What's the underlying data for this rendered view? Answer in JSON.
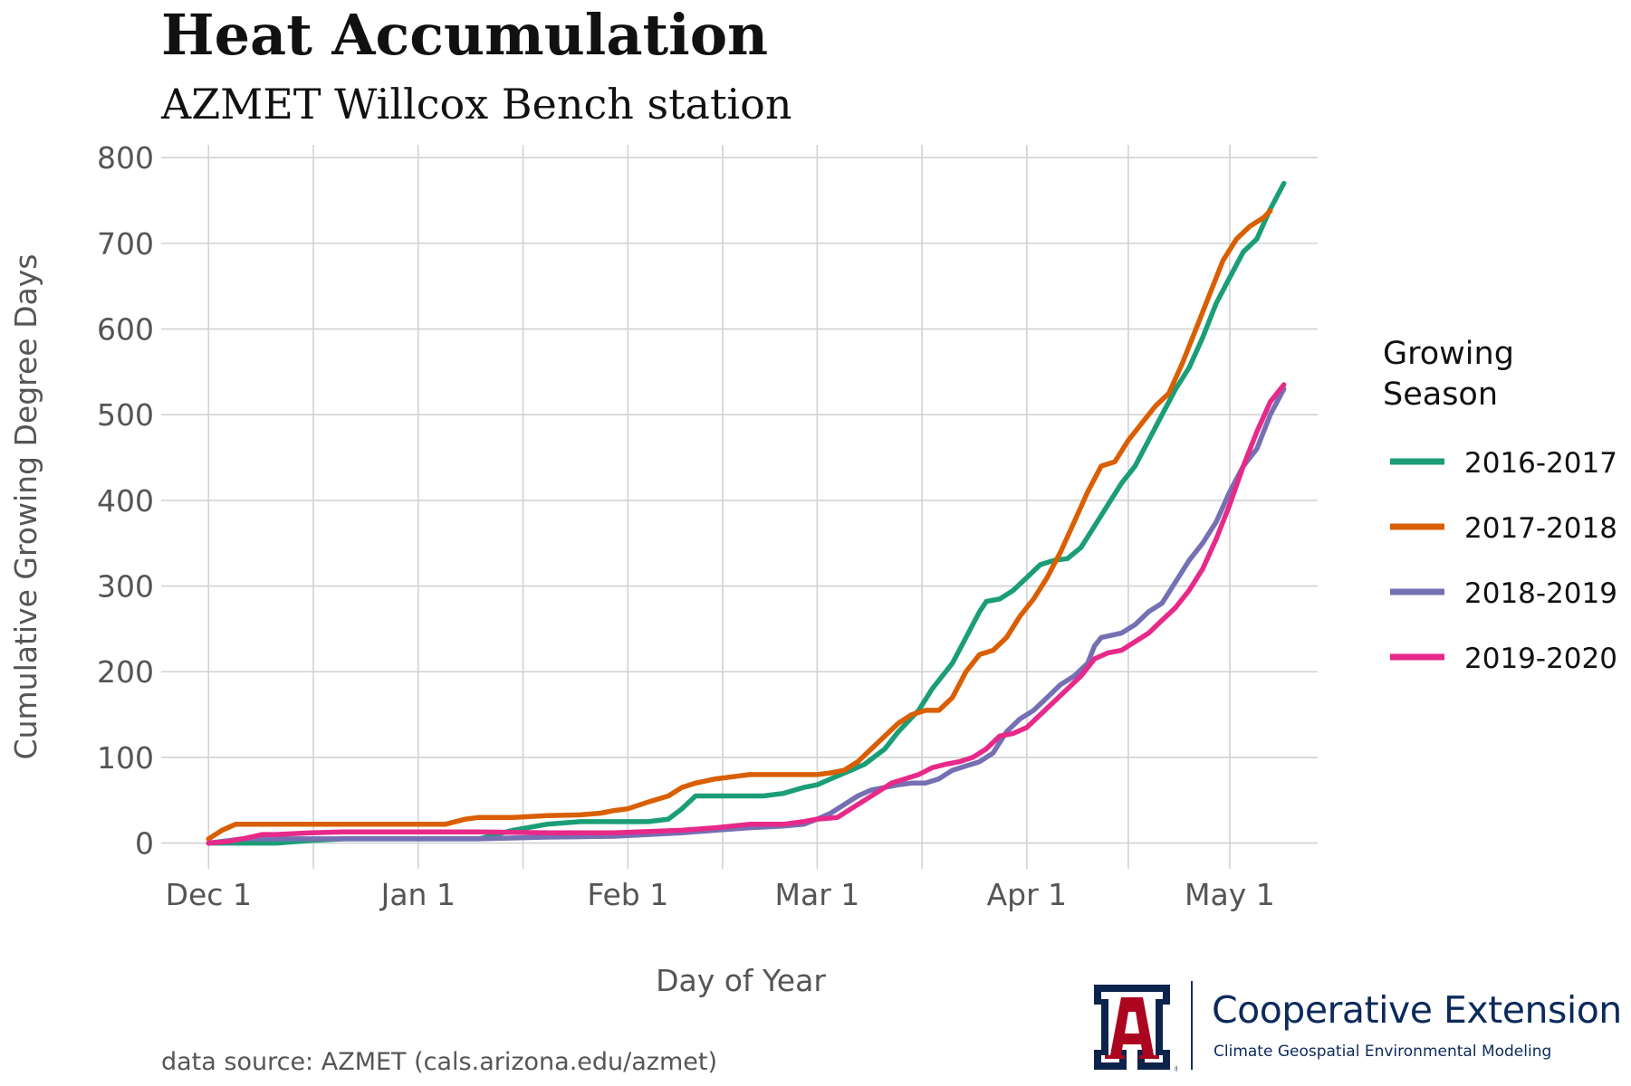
{
  "header": {
    "title": "Heat Accumulation",
    "subtitle": "AZMET Willcox Bench station"
  },
  "caption": "data source: AZMET (cals.arizona.edu/azmet)",
  "logo": {
    "name": "Cooperative Extension",
    "tagline": "Climate Geospatial Environmental Modeling",
    "mark_letter": "A",
    "mark_colors": {
      "red": "#ab0520",
      "navy": "#0c234b"
    }
  },
  "chart_data": {
    "type": "line",
    "title": "",
    "xlabel": "Day of Year",
    "ylabel": "Cumulative Growing Degree Days",
    "xlim": [
      -7,
      164
    ],
    "ylim": [
      -30,
      815
    ],
    "grid": true,
    "x_ticks": [
      {
        "day": 0,
        "label": "Dec 1"
      },
      {
        "day": 31,
        "label": "Jan 1"
      },
      {
        "day": 62,
        "label": "Feb 1"
      },
      {
        "day": 90,
        "label": "Mar 1"
      },
      {
        "day": 121,
        "label": "Apr 1"
      },
      {
        "day": 151,
        "label": "May 1"
      }
    ],
    "x_minor_ticks": [
      15.5,
      46.5,
      76,
      105.5,
      136
    ],
    "y_ticks": [
      0,
      100,
      200,
      300,
      400,
      500,
      600,
      700,
      800
    ],
    "legend": {
      "title": "Growing Season",
      "position": "right"
    },
    "series": [
      {
        "name": "2016-2017",
        "color": "#1b9e77",
        "points": [
          [
            0,
            0
          ],
          [
            5,
            0
          ],
          [
            10,
            0
          ],
          [
            15,
            3
          ],
          [
            20,
            5
          ],
          [
            30,
            5
          ],
          [
            40,
            5
          ],
          [
            45,
            15
          ],
          [
            50,
            22
          ],
          [
            55,
            25
          ],
          [
            60,
            25
          ],
          [
            65,
            25
          ],
          [
            68,
            28
          ],
          [
            70,
            40
          ],
          [
            72,
            55
          ],
          [
            75,
            55
          ],
          [
            80,
            55
          ],
          [
            82,
            55
          ],
          [
            85,
            58
          ],
          [
            88,
            65
          ],
          [
            90,
            68
          ],
          [
            92,
            75
          ],
          [
            95,
            85
          ],
          [
            97,
            92
          ],
          [
            100,
            110
          ],
          [
            102,
            130
          ],
          [
            105,
            155
          ],
          [
            107,
            180
          ],
          [
            110,
            210
          ],
          [
            112,
            240
          ],
          [
            114,
            270
          ],
          [
            115,
            282
          ],
          [
            117,
            285
          ],
          [
            119,
            295
          ],
          [
            121,
            310
          ],
          [
            123,
            325
          ],
          [
            125,
            330
          ],
          [
            127,
            332
          ],
          [
            129,
            345
          ],
          [
            131,
            370
          ],
          [
            133,
            395
          ],
          [
            135,
            420
          ],
          [
            137,
            440
          ],
          [
            139,
            470
          ],
          [
            141,
            500
          ],
          [
            143,
            530
          ],
          [
            145,
            555
          ],
          [
            147,
            590
          ],
          [
            149,
            630
          ],
          [
            151,
            660
          ],
          [
            153,
            690
          ],
          [
            155,
            705
          ],
          [
            157,
            740
          ],
          [
            159,
            770
          ]
        ]
      },
      {
        "name": "2017-2018",
        "color": "#d95f02",
        "points": [
          [
            0,
            5
          ],
          [
            2,
            15
          ],
          [
            4,
            22
          ],
          [
            8,
            22
          ],
          [
            15,
            22
          ],
          [
            20,
            22
          ],
          [
            30,
            22
          ],
          [
            35,
            22
          ],
          [
            38,
            28
          ],
          [
            40,
            30
          ],
          [
            45,
            30
          ],
          [
            50,
            32
          ],
          [
            55,
            33
          ],
          [
            58,
            35
          ],
          [
            60,
            38
          ],
          [
            62,
            40
          ],
          [
            65,
            48
          ],
          [
            68,
            55
          ],
          [
            70,
            65
          ],
          [
            72,
            70
          ],
          [
            75,
            75
          ],
          [
            78,
            78
          ],
          [
            80,
            80
          ],
          [
            85,
            80
          ],
          [
            90,
            80
          ],
          [
            92,
            82
          ],
          [
            94,
            85
          ],
          [
            96,
            95
          ],
          [
            98,
            110
          ],
          [
            100,
            125
          ],
          [
            102,
            140
          ],
          [
            104,
            150
          ],
          [
            106,
            155
          ],
          [
            108,
            155
          ],
          [
            110,
            170
          ],
          [
            112,
            200
          ],
          [
            114,
            220
          ],
          [
            116,
            225
          ],
          [
            118,
            240
          ],
          [
            120,
            265
          ],
          [
            122,
            285
          ],
          [
            124,
            310
          ],
          [
            126,
            340
          ],
          [
            128,
            375
          ],
          [
            130,
            410
          ],
          [
            132,
            440
          ],
          [
            134,
            445
          ],
          [
            136,
            470
          ],
          [
            138,
            490
          ],
          [
            140,
            510
          ],
          [
            142,
            525
          ],
          [
            144,
            560
          ],
          [
            146,
            600
          ],
          [
            148,
            640
          ],
          [
            150,
            680
          ],
          [
            152,
            705
          ],
          [
            154,
            720
          ],
          [
            156,
            730
          ],
          [
            157,
            738
          ]
        ]
      },
      {
        "name": "2018-2019",
        "color": "#7570b3",
        "points": [
          [
            0,
            0
          ],
          [
            5,
            5
          ],
          [
            10,
            5
          ],
          [
            20,
            5
          ],
          [
            30,
            5
          ],
          [
            40,
            5
          ],
          [
            50,
            7
          ],
          [
            60,
            8
          ],
          [
            65,
            10
          ],
          [
            70,
            12
          ],
          [
            75,
            15
          ],
          [
            80,
            18
          ],
          [
            85,
            20
          ],
          [
            88,
            22
          ],
          [
            90,
            28
          ],
          [
            92,
            35
          ],
          [
            94,
            45
          ],
          [
            96,
            55
          ],
          [
            98,
            62
          ],
          [
            100,
            65
          ],
          [
            102,
            68
          ],
          [
            104,
            70
          ],
          [
            106,
            70
          ],
          [
            108,
            75
          ],
          [
            110,
            85
          ],
          [
            112,
            90
          ],
          [
            114,
            95
          ],
          [
            116,
            105
          ],
          [
            118,
            130
          ],
          [
            120,
            145
          ],
          [
            122,
            155
          ],
          [
            124,
            170
          ],
          [
            126,
            185
          ],
          [
            128,
            195
          ],
          [
            130,
            210
          ],
          [
            131,
            230
          ],
          [
            132,
            240
          ],
          [
            135,
            245
          ],
          [
            137,
            255
          ],
          [
            139,
            270
          ],
          [
            141,
            280
          ],
          [
            143,
            305
          ],
          [
            145,
            330
          ],
          [
            147,
            350
          ],
          [
            149,
            375
          ],
          [
            151,
            410
          ],
          [
            153,
            440
          ],
          [
            155,
            460
          ],
          [
            157,
            500
          ],
          [
            159,
            530
          ]
        ]
      },
      {
        "name": "2019-2020",
        "color": "#e7298a",
        "points": [
          [
            0,
            0
          ],
          [
            3,
            2
          ],
          [
            5,
            5
          ],
          [
            8,
            10
          ],
          [
            10,
            10
          ],
          [
            15,
            12
          ],
          [
            20,
            13
          ],
          [
            30,
            13
          ],
          [
            40,
            13
          ],
          [
            50,
            12
          ],
          [
            60,
            12
          ],
          [
            70,
            15
          ],
          [
            75,
            18
          ],
          [
            80,
            22
          ],
          [
            85,
            22
          ],
          [
            88,
            25
          ],
          [
            90,
            28
          ],
          [
            93,
            30
          ],
          [
            95,
            40
          ],
          [
            97,
            50
          ],
          [
            99,
            60
          ],
          [
            101,
            70
          ],
          [
            103,
            75
          ],
          [
            105,
            80
          ],
          [
            107,
            88
          ],
          [
            109,
            92
          ],
          [
            111,
            95
          ],
          [
            113,
            100
          ],
          [
            115,
            110
          ],
          [
            117,
            125
          ],
          [
            119,
            128
          ],
          [
            121,
            135
          ],
          [
            123,
            150
          ],
          [
            125,
            165
          ],
          [
            127,
            180
          ],
          [
            129,
            195
          ],
          [
            131,
            215
          ],
          [
            133,
            222
          ],
          [
            135,
            225
          ],
          [
            137,
            235
          ],
          [
            139,
            245
          ],
          [
            141,
            260
          ],
          [
            143,
            275
          ],
          [
            145,
            295
          ],
          [
            147,
            320
          ],
          [
            149,
            355
          ],
          [
            151,
            395
          ],
          [
            153,
            440
          ],
          [
            155,
            480
          ],
          [
            157,
            515
          ],
          [
            159,
            535
          ]
        ]
      }
    ]
  }
}
